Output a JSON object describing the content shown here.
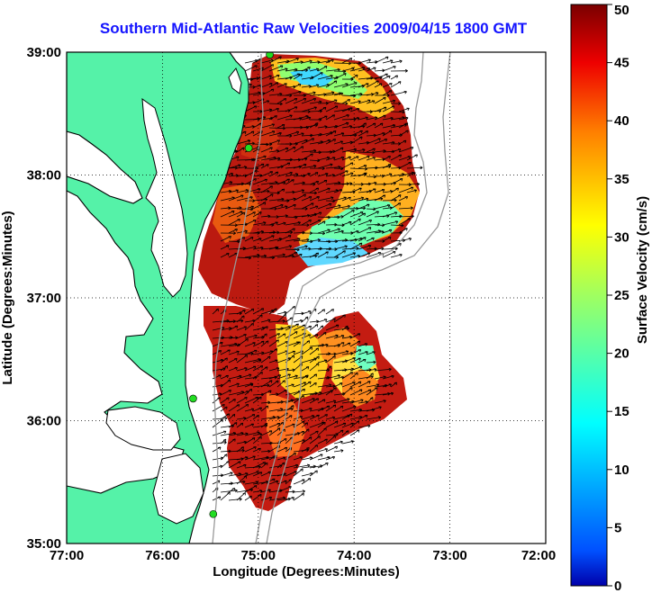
{
  "title": "Southern Mid-Atlantic Raw Velocities 2009/04/15 1800 GMT",
  "axes": {
    "xlabel": "Longitude (Degrees:Minutes)",
    "ylabel": "Latitude (Degrees:Minutes)",
    "x_ticks": [
      "77:00",
      "76:00",
      "75:00",
      "74:00",
      "73:00",
      "72:00"
    ],
    "y_ticks": [
      "39:00",
      "38:00",
      "37:00",
      "36:00",
      "35:00"
    ],
    "xlim": [
      -77,
      -72
    ],
    "ylim": [
      35,
      39
    ],
    "grid": true
  },
  "colorbar": {
    "label": "Surface Velocity (cm/s)",
    "ticks": [
      "50",
      "45",
      "40",
      "35",
      "30",
      "25",
      "20",
      "15",
      "10",
      "5",
      "0"
    ],
    "range": [
      0,
      50
    ]
  },
  "colors": {
    "land": "#55f2a8",
    "title": "#1414ff",
    "station": "#22dd22"
  },
  "stations": [
    {
      "lon": -74.88,
      "lat": 38.98
    },
    {
      "lon": -75.1,
      "lat": 38.22
    },
    {
      "lon": -75.68,
      "lat": 36.18
    },
    {
      "lon": -75.47,
      "lat": 35.24
    }
  ]
}
